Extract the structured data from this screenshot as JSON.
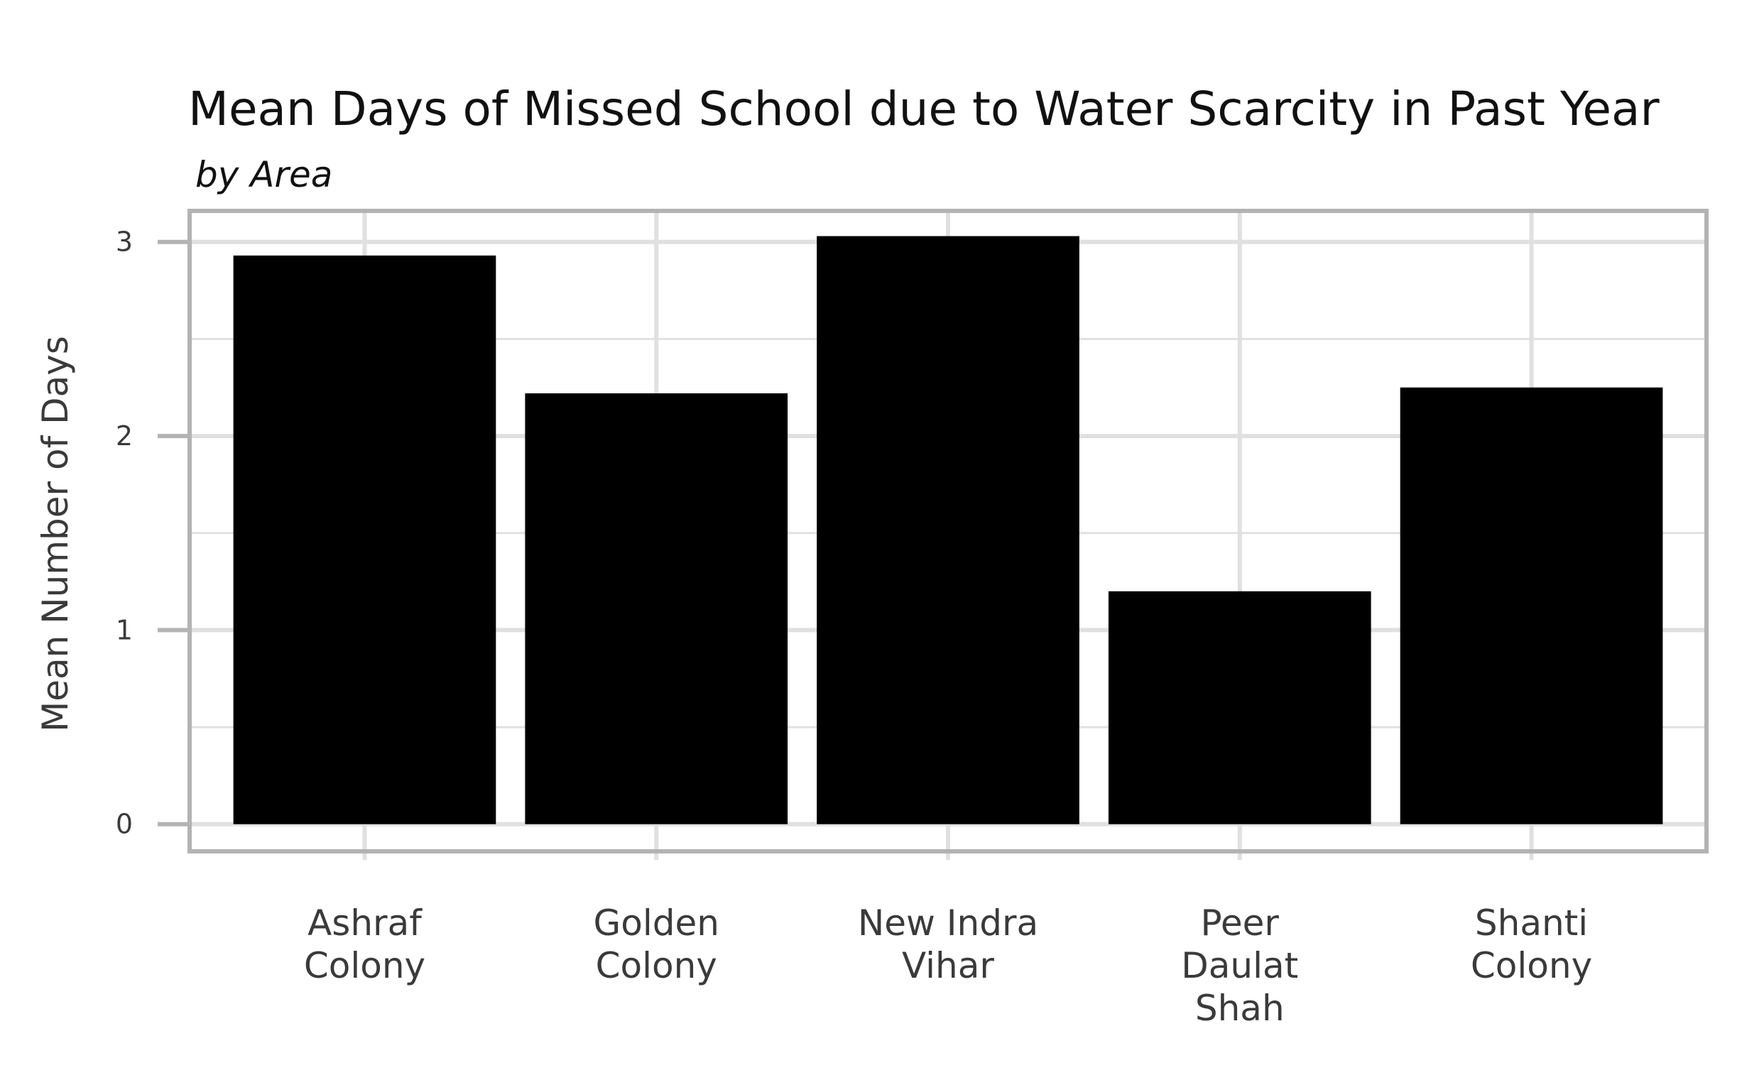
{
  "chart_data": {
    "type": "bar",
    "title": "Mean Days of Missed School due to Water Scarcity in Past Year",
    "subtitle": "by Area",
    "xlabel": "",
    "ylabel": "Mean Number of Days",
    "categories": [
      "Ashraf Colony",
      "Golden Colony",
      "New Indra Vihar",
      "Peer Daulat Shah",
      "Shanti Colony"
    ],
    "category_lines": [
      [
        "Ashraf",
        "Colony"
      ],
      [
        "Golden",
        "Colony"
      ],
      [
        "New Indra",
        "Vihar"
      ],
      [
        "Peer",
        "Daulat",
        "Shah"
      ],
      [
        "Shanti",
        "Colony"
      ]
    ],
    "values": [
      2.93,
      2.22,
      3.03,
      1.2,
      2.25
    ],
    "ylim": [
      -0.14,
      3.16
    ],
    "yticks": [
      0,
      1,
      2,
      3
    ],
    "grid": true,
    "legend": "none",
    "bar_color": "#000000",
    "grid_color": "#e0e0e0",
    "frame_color": "#b3b3b3"
  }
}
